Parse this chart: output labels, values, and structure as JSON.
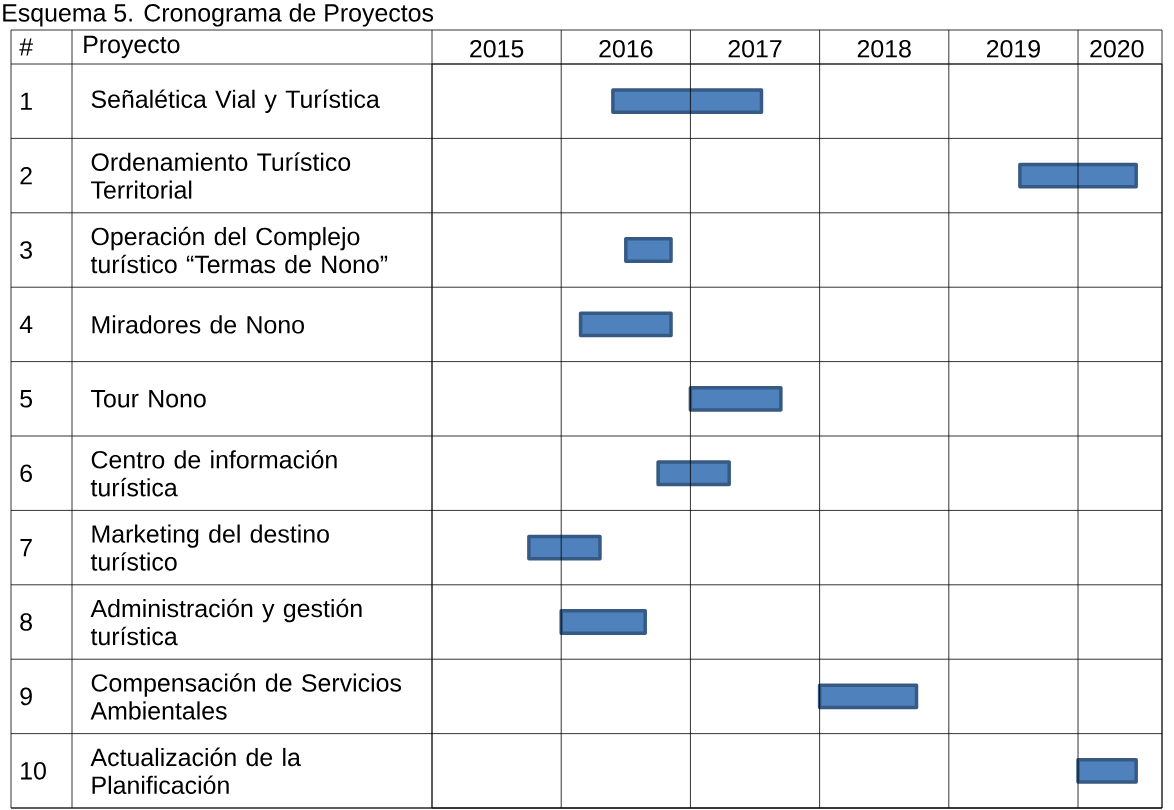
{
  "chart_data": {
    "type": "bar",
    "orientation": "horizontal",
    "title": "Esquema 5. Cronograma de Proyectos",
    "ylabel": "Proyecto",
    "categories": [
      "Señalética Vial y Turística",
      "Ordenamiento Turístico Territorial",
      "Operación del Complejo turístico “Termas de Nono”",
      "Miradores de Nono",
      "Tour Nono",
      "Centro de información turística",
      "Marketing del destino turístico",
      "Administración y gestión turística",
      "Compensación de Servicios Ambientales",
      "Actualización de la Planificación"
    ],
    "base": [
      2016.4,
      2019.55,
      2016.5,
      2016.15,
      2017.0,
      2016.75,
      2015.75,
      2016.0,
      2018.0,
      2020.0
    ],
    "values": [
      1.15,
      0.9,
      0.35,
      0.7,
      0.7,
      0.55,
      0.55,
      0.65,
      0.75,
      0.45
    ],
    "color": "#4f81bd",
    "xlim": [
      2015,
      2020.65
    ],
    "xticks": [
      {
        "value": 2015.5,
        "label": "2015"
      },
      {
        "value": 2016.5,
        "label": "2016"
      },
      {
        "value": 2017.5,
        "label": "2017"
      },
      {
        "value": 2018.5,
        "label": "2018"
      },
      {
        "value": 2019.5,
        "label": "2019"
      },
      {
        "value": 2020.3,
        "label": "2020"
      }
    ],
    "annotations": [
      "#",
      "1",
      "2",
      "3",
      "4",
      "5",
      "6",
      "7",
      "8",
      "9",
      "10"
    ]
  }
}
